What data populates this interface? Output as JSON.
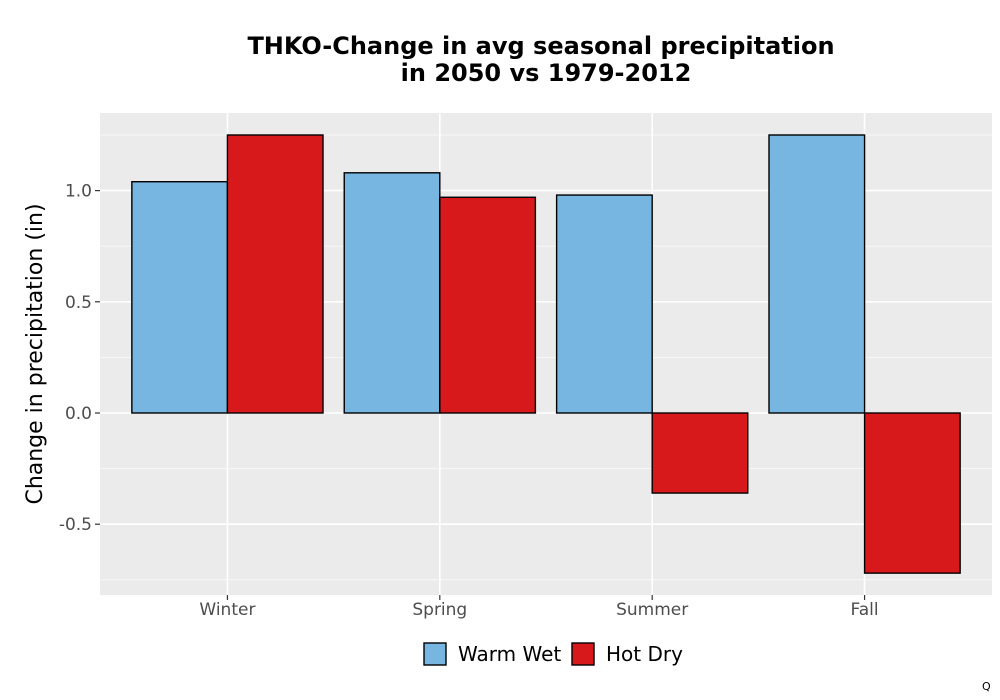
{
  "chart_data": {
    "type": "bar",
    "title_line1": "THKO-Change in avg seasonal precipitation",
    "title_line2": "in 2050 vs 1979-2012",
    "xlabel": "",
    "ylabel": "Change in precipitation (in)",
    "categories": [
      "Winter",
      "Spring",
      "Summer",
      "Fall"
    ],
    "series": [
      {
        "name": "Warm Wet",
        "color": "#76b6e0",
        "values": [
          1.04,
          1.08,
          0.98,
          1.25
        ]
      },
      {
        "name": "Hot Dry",
        "color": "#d7191c",
        "values": [
          1.25,
          0.97,
          -0.36,
          -0.72
        ]
      }
    ],
    "ylim": [
      -0.81,
      1.34
    ],
    "yticks": [
      -0.5,
      0.0,
      0.5,
      1.0
    ],
    "ytick_labels": [
      "-0.5",
      "0.0",
      "0.5",
      "1.0"
    ],
    "grid": true,
    "legend_position": "bottom"
  },
  "corner_mark": "Q"
}
